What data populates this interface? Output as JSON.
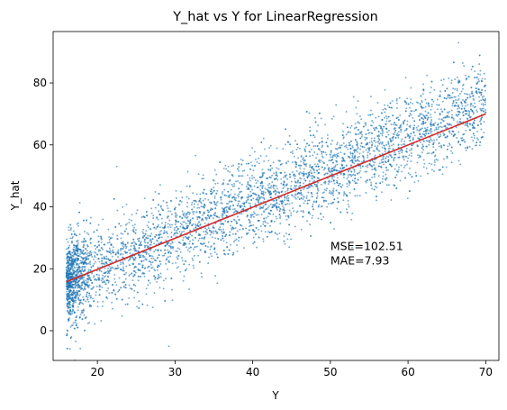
{
  "chart_data": {
    "type": "scatter",
    "title": "Y_hat vs Y for LinearRegression",
    "xlabel": "Y",
    "ylabel": "Y_hat",
    "xlim": [
      14.3,
      71.7
    ],
    "ylim": [
      -9.6,
      96.6
    ],
    "xticks": [
      20,
      30,
      40,
      50,
      60,
      70
    ],
    "yticks": [
      0,
      20,
      40,
      60,
      80
    ],
    "grid": false,
    "scatter_color": "#1f77b4",
    "scatter_alpha": 0.6,
    "point_count_estimate": 5000,
    "scatter_trend": {
      "intercept": -1.5,
      "slope": 1.07,
      "noise_sd": 7.0,
      "y_range": [
        16,
        70
      ]
    },
    "outliers": [
      {
        "x": 66.5,
        "y": 93
      },
      {
        "x": 67.2,
        "y": 85.5
      },
      {
        "x": 29.2,
        "y": -5
      },
      {
        "x": 17.2,
        "y": -3.5
      },
      {
        "x": 53,
        "y": 75.5
      },
      {
        "x": 62,
        "y": 77.5
      },
      {
        "x": 64.5,
        "y": 74
      },
      {
        "x": 22.5,
        "y": 53
      }
    ],
    "fit_line": {
      "color": "#d62728",
      "x": [
        16,
        70
      ],
      "y": [
        15.8,
        70
      ]
    },
    "annotation": {
      "lines": [
        "MSE=102.51",
        "MAE=7.93"
      ],
      "x": 50,
      "y": 26
    }
  }
}
